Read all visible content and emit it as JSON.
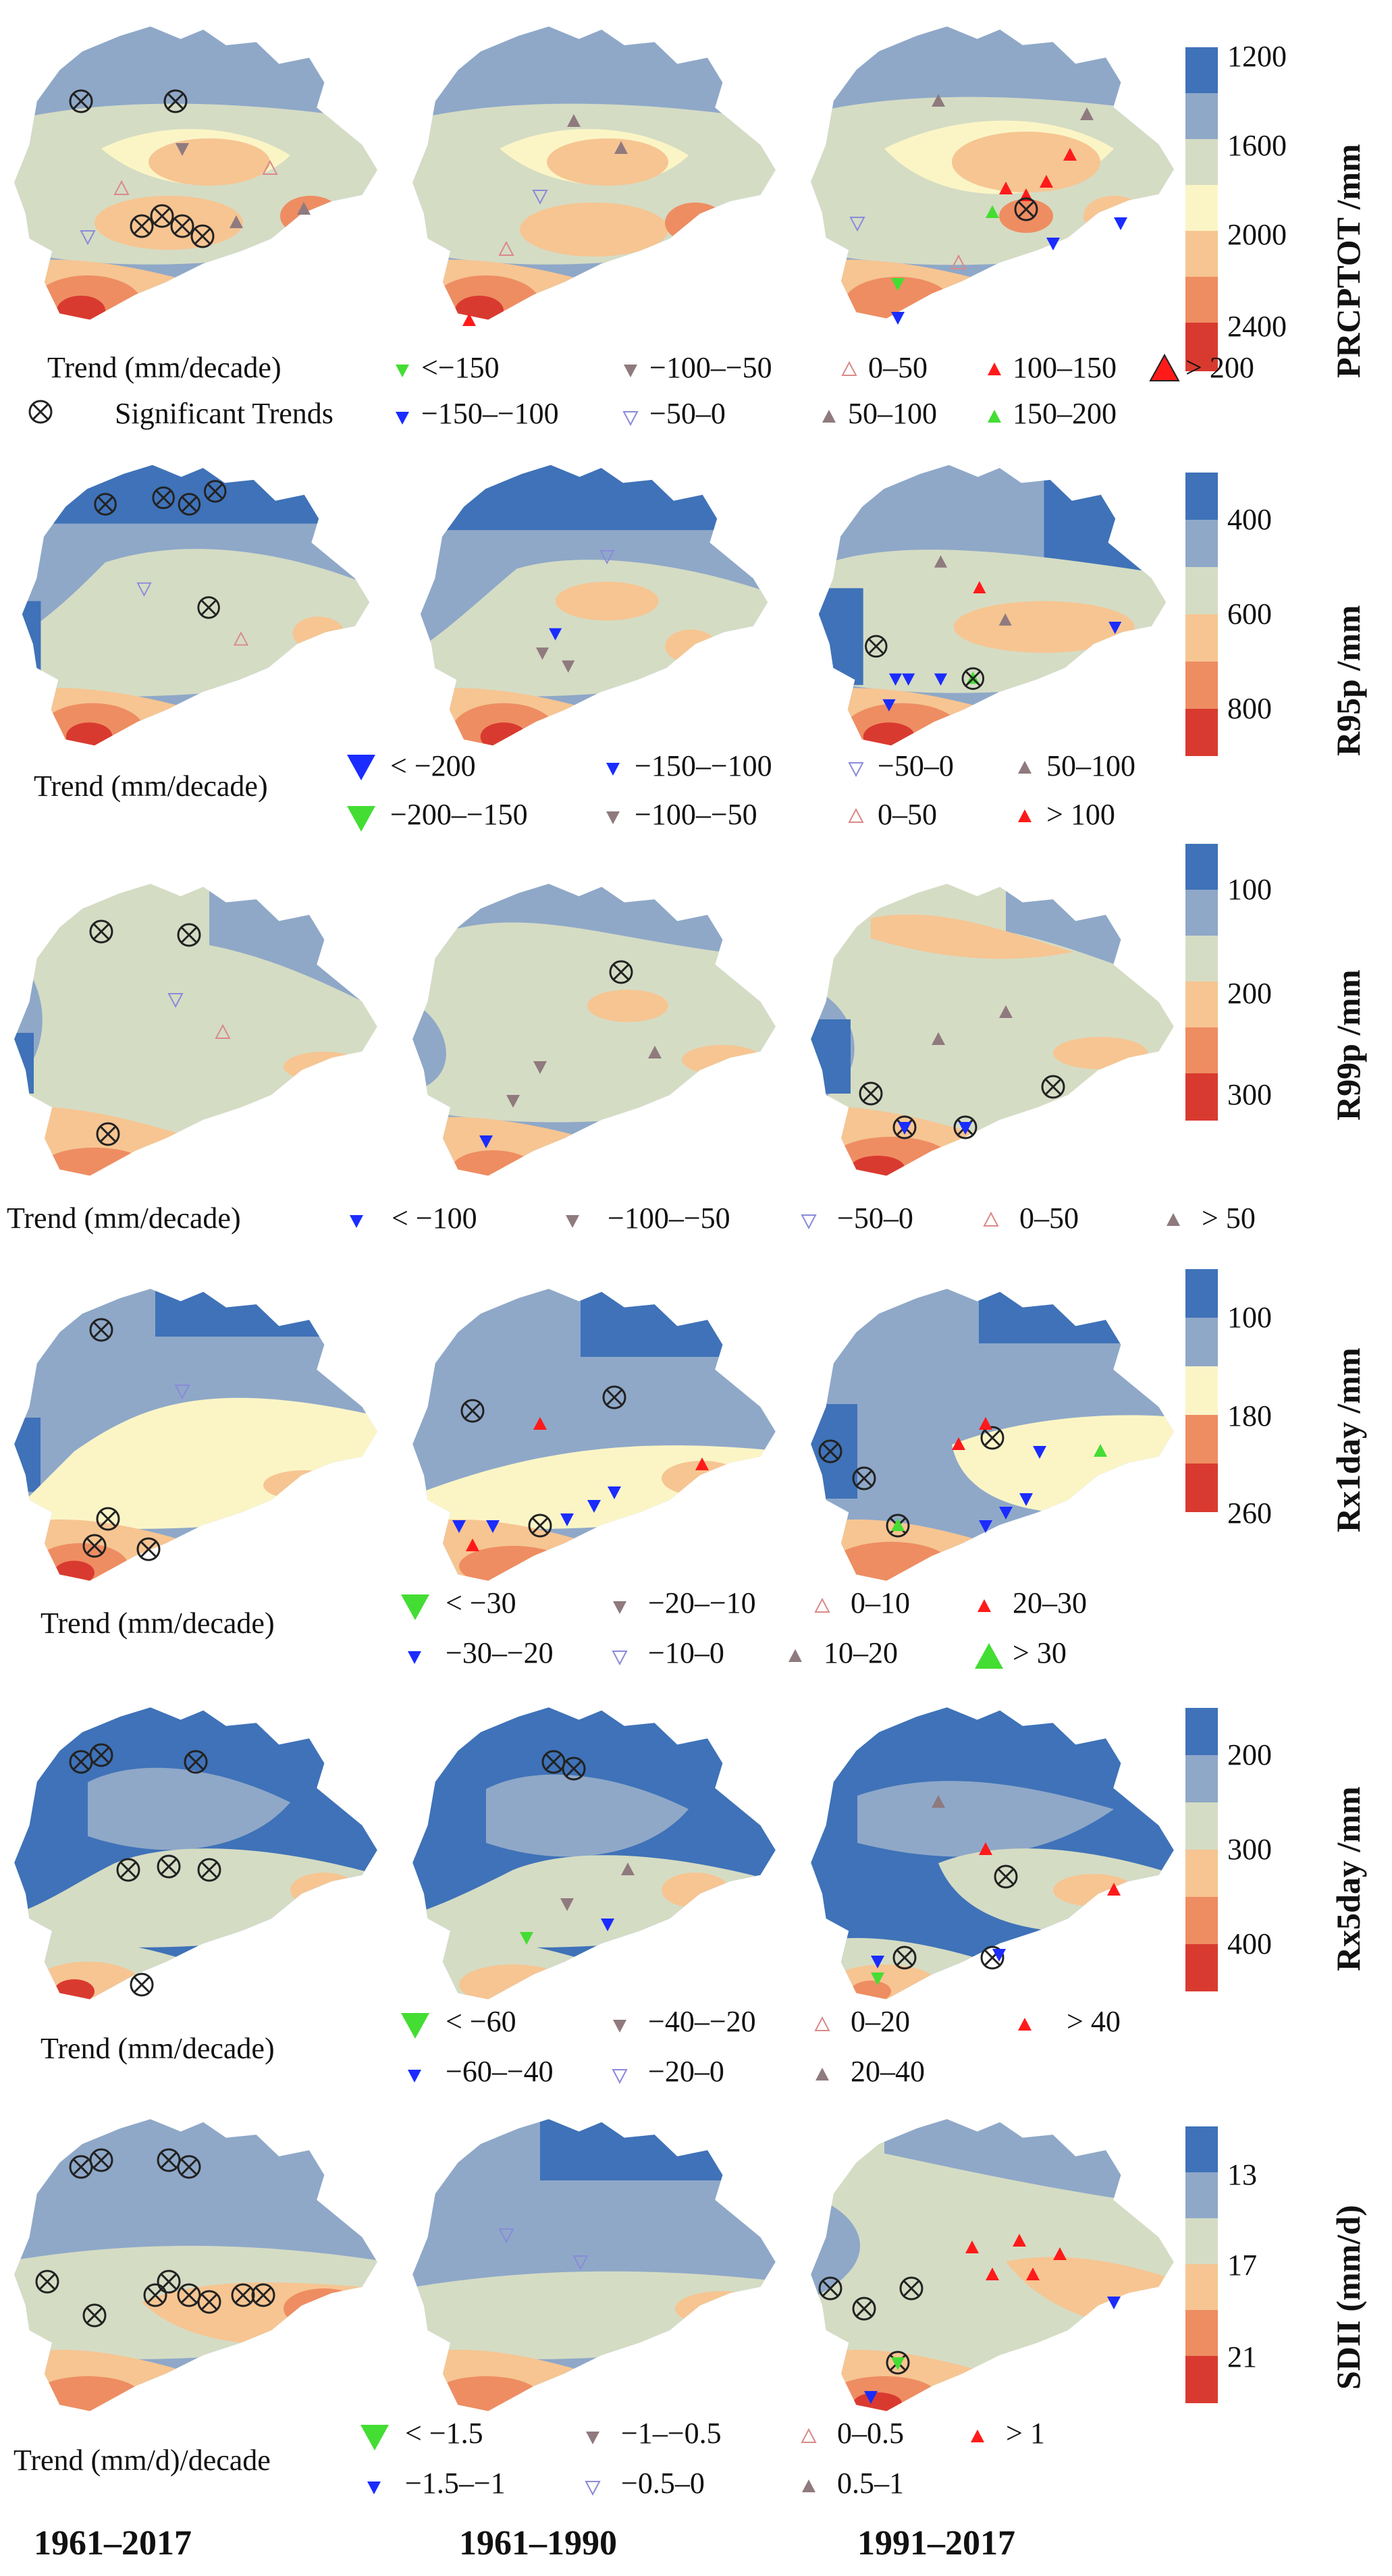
{
  "colors": {
    "c1": "#3f72b8",
    "c2": "#8fa8c8",
    "c3": "#d5dcc4",
    "c4": "#fbf5c6",
    "c5": "#f6c592",
    "c6": "#ee8d62",
    "c7": "#d93a30",
    "red": "#ff1a1a",
    "blue": "#1a2cff",
    "green": "#44dd33",
    "mauve": "#8f7a7e",
    "hollow_red": "#d98a8a",
    "hollow_blue": "#8a8ad9"
  },
  "periods": [
    "1961–2017",
    "1961–1990",
    "1991–2017"
  ],
  "rows": [
    {
      "index": "PRCPTOT /mm",
      "colorbar_ticks": [
        "1200",
        "1600",
        "2000",
        "2400"
      ],
      "trend_label": "Trend (mm/decade)",
      "significant_label": "Significant Trends",
      "legend": [
        "<−150",
        "−100–−50",
        "0–50",
        "100–150",
        "> 200",
        "−150–−100",
        "−50–0",
        "50–100",
        "150–200"
      ]
    },
    {
      "index": "R95p /mm",
      "colorbar_ticks": [
        "400",
        "600",
        "800"
      ],
      "trend_label": "Trend (mm/decade)",
      "legend": [
        "< −200",
        "−150–−100",
        "−50–0",
        "50–100",
        "−200–−150",
        "−100–−50",
        "0–50",
        "> 100"
      ]
    },
    {
      "index": "R99p /mm",
      "colorbar_ticks": [
        "100",
        "200",
        "300"
      ],
      "trend_label": "Trend (mm/decade)",
      "legend": [
        "< −100",
        "−100–−50",
        "−50–0",
        "0–50",
        "> 50"
      ]
    },
    {
      "index": "Rx1day /mm",
      "colorbar_ticks": [
        "100",
        "180",
        "260"
      ],
      "trend_label": "Trend (mm/decade)",
      "legend": [
        "< −30",
        "−20–−10",
        "0–10",
        "20–30",
        "−30–−20",
        "−10–0",
        "10–20",
        "> 30"
      ]
    },
    {
      "index": "Rx5day /mm",
      "colorbar_ticks": [
        "200",
        "300",
        "400"
      ],
      "trend_label": "Trend (mm/decade)",
      "legend": [
        "< −60",
        "−40–−20",
        "0–20",
        "> 40",
        "−60–−40",
        "−20–0",
        "20–40"
      ]
    },
    {
      "index": "SDII (mm/d)",
      "colorbar_ticks": [
        "13",
        "17",
        "21"
      ],
      "trend_label": "Trend (mm/d)/decade",
      "legend": [
        "< −1.5",
        "−1–−0.5",
        "0–0.5",
        "> 1",
        "−1.5–−1",
        "−0.5–0",
        "0.5–1"
      ]
    }
  ]
}
